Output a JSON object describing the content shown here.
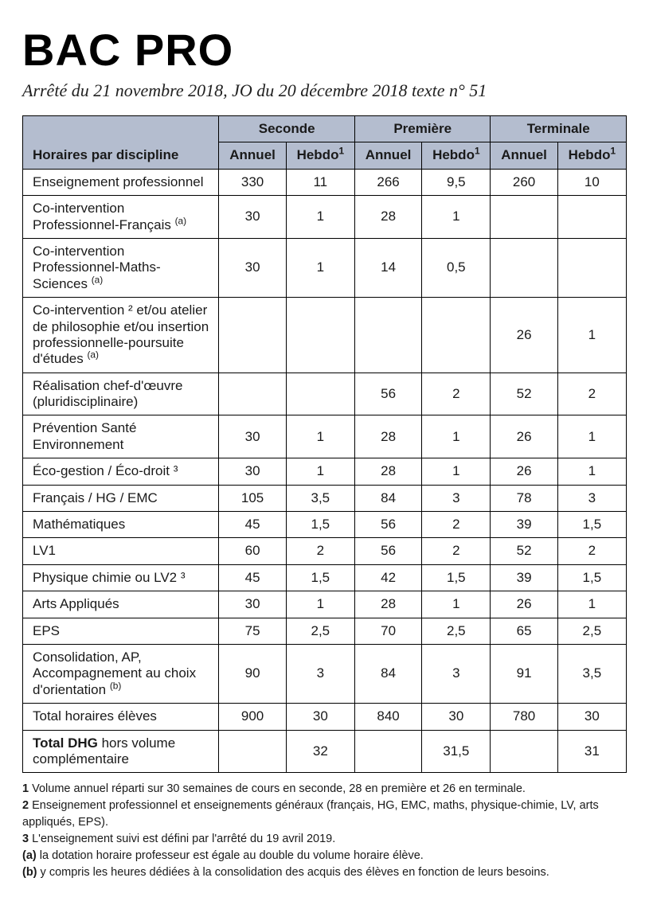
{
  "colors": {
    "header_bg": "#b4bdcf",
    "border": "#000000",
    "text": "#1a1a1a",
    "bg": "#ffffff"
  },
  "title": "BAC PRO",
  "subtitle": "Arrêté du 21 novembre 2018, JO du 20 décembre 2018 texte n° 51",
  "table": {
    "row_header": "Horaires par discipline",
    "level_groups": [
      "Seconde",
      "Première",
      "Terminale"
    ],
    "sub_cols": {
      "annuel": "Annuel",
      "hebdo": "Hebdo",
      "hebdo_sup": "1"
    },
    "rows": [
      {
        "label": "Enseignement professionnel",
        "cells": [
          "330",
          "11",
          "266",
          "9,5",
          "260",
          "10"
        ]
      },
      {
        "label": "Co-intervention Professionnel-Français ",
        "sup": "(a)",
        "cells": [
          "30",
          "1",
          "28",
          "1",
          "",
          ""
        ]
      },
      {
        "label": "Co-intervention Professionnel-Maths-Sciences ",
        "sup": "(a)",
        "cells": [
          "30",
          "1",
          "14",
          "0,5",
          "",
          ""
        ]
      },
      {
        "label": "Co-intervention ² et/ou atelier de philosophie et/ou insertion professionnelle-poursuite d'études ",
        "sup": "(a)",
        "cells": [
          "",
          "",
          "",
          "",
          "26",
          "1"
        ]
      },
      {
        "label": "Réalisation chef-d'œuvre (pluridisciplinaire)",
        "cells": [
          "",
          "",
          "56",
          "2",
          "52",
          "2"
        ]
      },
      {
        "label": "Prévention Santé Environnement",
        "cells": [
          "30",
          "1",
          "28",
          "1",
          "26",
          "1"
        ]
      },
      {
        "label": "Éco-gestion /  Éco-droit ³",
        "cells": [
          "30",
          "1",
          "28",
          "1",
          "26",
          "1"
        ]
      },
      {
        "label": "Français / HG / EMC",
        "cells": [
          "105",
          "3,5",
          "84",
          "3",
          "78",
          "3"
        ]
      },
      {
        "label": "Mathématiques",
        "cells": [
          "45",
          "1,5",
          "56",
          "2",
          "39",
          "1,5"
        ]
      },
      {
        "label": "LV1",
        "cells": [
          "60",
          "2",
          "56",
          "2",
          "52",
          "2"
        ]
      },
      {
        "label": "Physique chimie ou LV2 ³",
        "cells": [
          "45",
          "1,5",
          "42",
          "1,5",
          "39",
          "1,5"
        ]
      },
      {
        "label": "Arts Appliqués",
        "cells": [
          "30",
          "1",
          "28",
          "1",
          "26",
          "1"
        ]
      },
      {
        "label": "EPS",
        "cells": [
          "75",
          "2,5",
          "70",
          "2,5",
          "65",
          "2,5"
        ]
      },
      {
        "label": "Consolidation, AP, Accompagnement au choix d'orientation ",
        "sup": "(b)",
        "cells": [
          "90",
          "3",
          "84",
          "3",
          "91",
          "3,5"
        ]
      },
      {
        "label": "Total horaires élèves",
        "cells": [
          "900",
          "30",
          "840",
          "30",
          "780",
          "30"
        ],
        "is_total": true
      }
    ],
    "dhg_row": {
      "bold_prefix": "Total DHG",
      "rest": " hors volume complémentaire",
      "cells": [
        "",
        "32",
        "",
        "31,5",
        "",
        "31"
      ]
    }
  },
  "footnotes": [
    {
      "key": "1",
      "text": " Volume annuel réparti sur 30 semaines de cours en seconde, 28 en première et 26 en terminale."
    },
    {
      "key": "2",
      "text": " Enseignement professionnel et enseignements généraux (français, HG, EMC, maths, physique-chimie, LV, arts appliqués, EPS)."
    },
    {
      "key": "3",
      "text": " L'enseignement suivi est défini par l'arrêté du 19 avril 2019."
    },
    {
      "key": "(a)",
      "text": " la dotation horaire professeur est égale au double du volume horaire élève."
    },
    {
      "key": "(b)",
      "text": " y compris les heures dédiées à la consolidation des acquis des élèves en fonction de leurs besoins."
    }
  ]
}
